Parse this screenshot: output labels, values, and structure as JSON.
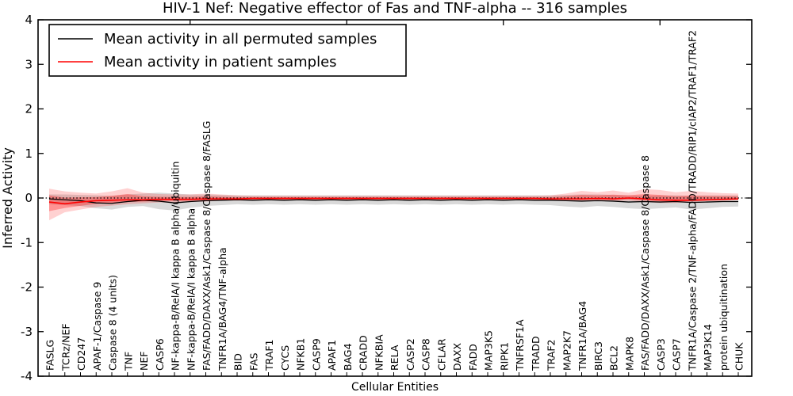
{
  "title": "HIV-1 Nef: Negative effector of Fas and TNF-alpha -- 316 samples",
  "chart_data": {
    "type": "line",
    "title": "HIV-1 Nef: Negative effector of Fas and TNF-alpha -- 316 samples",
    "xlabel": "Cellular Entities",
    "ylabel": "Inferred Activity",
    "ylim": [
      -4,
      4
    ],
    "yticks": [
      4,
      3,
      2,
      1,
      0,
      -1,
      -2,
      -3,
      -4
    ],
    "grid": false,
    "zero_line": "dotted black horizontal line at y=0",
    "legend_position": "upper left",
    "categories": [
      "FASLG",
      "TCRz/NEF",
      "CD247",
      "APAF-1/Caspase 9",
      "Caspase 8 (4 units)",
      "TNF",
      "NEF",
      "CASP6",
      "NF-kappa-B/RelA/I kappa B alpha/ubiquitin",
      "NF-kappa-B/RelA/I kappa B alpha",
      "FAS/FADD/DAXX/Ask1/Caspase 8/Caspase 8/FASLG",
      "TNFR1A/BAG4/TNF-alpha",
      "BID",
      "FAS",
      "TRAF1",
      "CYCS",
      "NFKB1",
      "CASP9",
      "APAF1",
      "BAG4",
      "CRADD",
      "NFKBIA",
      "RELA",
      "CASP2",
      "CASP8",
      "CFLAR",
      "DAXX",
      "FADD",
      "MAP3K5",
      "RIPK1",
      "TNFRSF1A",
      "TRADD",
      "TRAF2",
      "MAP2K7",
      "TNFR1A/BAG4",
      "BIRC3",
      "BCL2",
      "MAPK8",
      "FAS/FADD/DAXX/Ask1/Caspase 8/Caspase 8",
      "CASP3",
      "CASP7",
      "TNFR1A/Caspase 2/TNF-alpha/FADD/TRADD/RIP1/cIAP2/TRAF1/TRAF2",
      "MAP3K14",
      "protein ubiquitination",
      "CHUK"
    ],
    "series": [
      {
        "name": "Mean activity in all permuted samples",
        "color": "#000000",
        "band_color": "rgba(0,0,0,0.15)",
        "values": [
          -0.02,
          -0.04,
          -0.06,
          -0.11,
          -0.12,
          -0.08,
          -0.05,
          -0.07,
          -0.11,
          -0.08,
          -0.06,
          -0.05,
          -0.04,
          -0.05,
          -0.04,
          -0.05,
          -0.04,
          -0.05,
          -0.04,
          -0.05,
          -0.04,
          -0.05,
          -0.04,
          -0.05,
          -0.04,
          -0.05,
          -0.04,
          -0.05,
          -0.04,
          -0.05,
          -0.04,
          -0.05,
          -0.05,
          -0.06,
          -0.07,
          -0.06,
          -0.07,
          -0.09,
          -0.08,
          -0.09,
          -0.08,
          -0.1,
          -0.09,
          -0.08,
          -0.08
        ],
        "band_upper": [
          0.08,
          0.08,
          0.07,
          0.06,
          0.05,
          0.08,
          0.1,
          0.12,
          0.1,
          0.08,
          0.08,
          0.07,
          0.06,
          0.06,
          0.06,
          0.06,
          0.06,
          0.06,
          0.06,
          0.06,
          0.06,
          0.06,
          0.06,
          0.06,
          0.06,
          0.06,
          0.06,
          0.06,
          0.06,
          0.06,
          0.06,
          0.06,
          0.06,
          0.07,
          0.08,
          0.08,
          0.07,
          0.06,
          0.05,
          0.06,
          0.06,
          0.05,
          0.06,
          0.06,
          0.06
        ],
        "band_lower": [
          -0.14,
          -0.16,
          -0.18,
          -0.23,
          -0.26,
          -0.2,
          -0.18,
          -0.25,
          -0.28,
          -0.22,
          -0.18,
          -0.16,
          -0.14,
          -0.15,
          -0.14,
          -0.15,
          -0.14,
          -0.15,
          -0.14,
          -0.15,
          -0.14,
          -0.15,
          -0.14,
          -0.15,
          -0.14,
          -0.15,
          -0.14,
          -0.15,
          -0.14,
          -0.15,
          -0.14,
          -0.15,
          -0.16,
          -0.19,
          -0.21,
          -0.18,
          -0.2,
          -0.23,
          -0.25,
          -0.23,
          -0.21,
          -0.26,
          -0.23,
          -0.2,
          -0.19
        ]
      },
      {
        "name": "Mean activity in patient samples",
        "color": "#ff0000",
        "band_color": "rgba(255,0,0,0.18)",
        "values": [
          -0.09,
          -0.13,
          -0.09,
          -0.06,
          -0.05,
          -0.04,
          -0.04,
          -0.03,
          -0.03,
          -0.03,
          -0.02,
          -0.02,
          -0.02,
          -0.01,
          -0.01,
          -0.01,
          -0.01,
          -0.01,
          -0.01,
          -0.01,
          -0.01,
          -0.01,
          -0.01,
          -0.01,
          -0.01,
          -0.01,
          -0.01,
          -0.01,
          -0.01,
          -0.01,
          -0.01,
          -0.01,
          -0.02,
          -0.02,
          -0.02,
          -0.01,
          -0.02,
          0.0,
          -0.02,
          -0.04,
          -0.05,
          -0.05,
          -0.04,
          -0.03,
          -0.02
        ],
        "band_upper": [
          0.21,
          0.15,
          0.12,
          0.1,
          0.15,
          0.22,
          0.12,
          0.09,
          0.08,
          0.08,
          0.1,
          0.08,
          0.06,
          0.05,
          0.05,
          0.05,
          0.05,
          0.05,
          0.05,
          0.05,
          0.05,
          0.05,
          0.05,
          0.05,
          0.05,
          0.05,
          0.05,
          0.05,
          0.05,
          0.05,
          0.05,
          0.05,
          0.06,
          0.1,
          0.16,
          0.13,
          0.17,
          0.12,
          0.2,
          0.18,
          0.13,
          0.16,
          0.13,
          0.11,
          0.1
        ],
        "band_lower": [
          -0.5,
          -0.32,
          -0.26,
          -0.2,
          -0.17,
          -0.14,
          -0.12,
          -0.1,
          -0.1,
          -0.09,
          -0.08,
          -0.06,
          -0.06,
          -0.05,
          -0.05,
          -0.05,
          -0.05,
          -0.05,
          -0.05,
          -0.05,
          -0.05,
          -0.05,
          -0.05,
          -0.05,
          -0.05,
          -0.05,
          -0.05,
          -0.05,
          -0.05,
          -0.05,
          -0.05,
          -0.05,
          -0.05,
          -0.06,
          -0.07,
          -0.06,
          -0.07,
          -0.06,
          -0.09,
          -0.11,
          -0.11,
          -0.09,
          -0.07,
          -0.06,
          -0.05
        ]
      }
    ],
    "x_major_tick_indices": [
      9,
      19,
      29,
      39
    ]
  }
}
